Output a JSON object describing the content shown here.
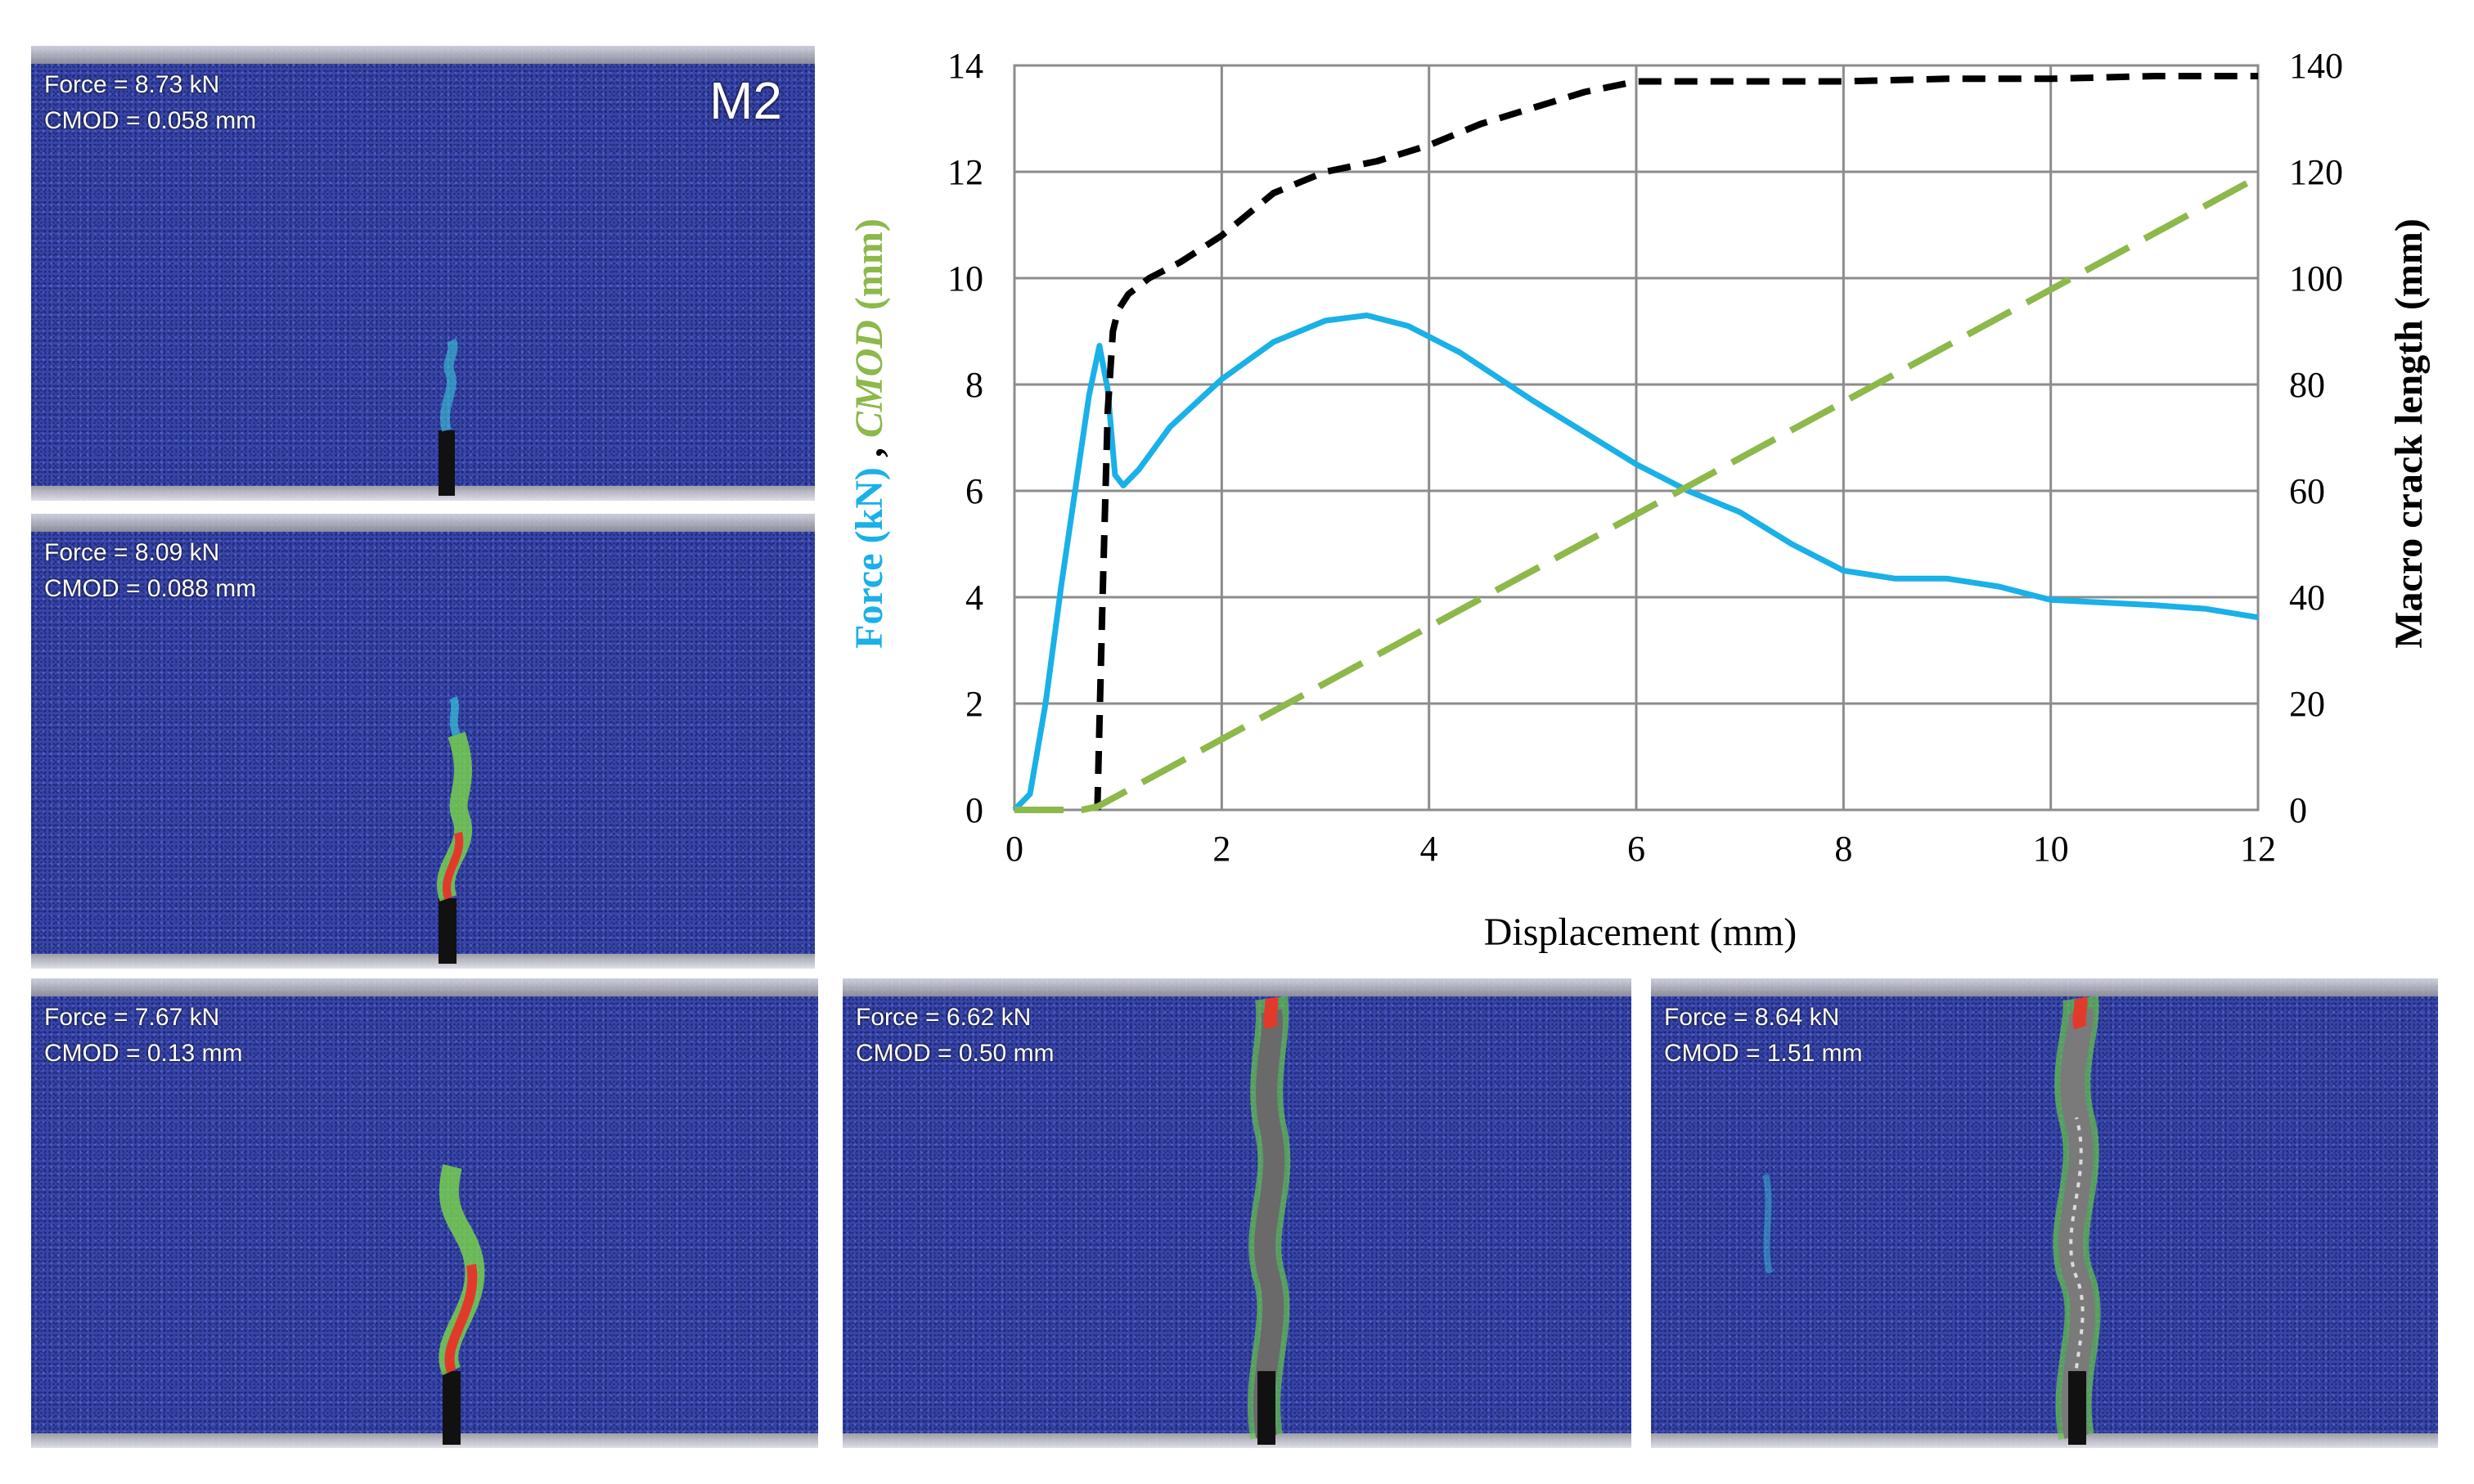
{
  "chart_data": {
    "type": "line",
    "xlabel": "Displacement (mm)",
    "xlim": [
      0,
      12
    ],
    "xticks": [
      "0",
      "2",
      "4",
      "6",
      "8",
      "10",
      "12"
    ],
    "ylim_left": [
      0,
      14
    ],
    "yticks_left": [
      "0",
      "2",
      "4",
      "6",
      "8",
      "10",
      "12",
      "14"
    ],
    "ylim_right": [
      0,
      140
    ],
    "yticks_right": [
      "0",
      "20",
      "40",
      "60",
      "80",
      "100",
      "120",
      "140"
    ],
    "ylabel_left": {
      "part1": "Force (kN)",
      "sep": " , ",
      "part2": "CMOD",
      "part3": " (mm)"
    },
    "ylabel_right": "Macro crack length  (mm)",
    "series": [
      {
        "name": "Force (kN)",
        "axis": "left",
        "color": "#1ab0e8",
        "dash": "solid",
        "x": [
          0,
          0.15,
          0.3,
          0.45,
          0.6,
          0.72,
          0.82,
          0.9,
          0.97,
          1.05,
          1.2,
          1.5,
          2.0,
          2.5,
          3.0,
          3.4,
          3.8,
          4.3,
          5.0,
          5.5,
          6.0,
          6.5,
          7.0,
          7.5,
          8.0,
          8.5,
          9.0,
          9.5,
          10.0,
          10.5,
          11.0,
          11.5,
          12.0
        ],
        "y": [
          0,
          0.3,
          2.0,
          4.2,
          6.2,
          7.8,
          8.73,
          7.9,
          6.3,
          6.1,
          6.4,
          7.2,
          8.1,
          8.8,
          9.2,
          9.3,
          9.1,
          8.6,
          7.7,
          7.1,
          6.5,
          6.0,
          5.6,
          5.0,
          4.5,
          4.35,
          4.35,
          4.2,
          3.95,
          3.9,
          3.85,
          3.78,
          3.62
        ]
      },
      {
        "name": "Macro crack length (mm)",
        "axis": "right",
        "color": "#000000",
        "dash": "short",
        "x": [
          0.8,
          0.85,
          0.9,
          0.95,
          1.0,
          1.1,
          1.3,
          1.6,
          2.0,
          2.5,
          3.0,
          3.5,
          4.0,
          4.5,
          5.0,
          5.5,
          6.0,
          7.0,
          8.0,
          9.0,
          10.0,
          11.0,
          12.0
        ],
        "y": [
          0,
          40,
          75,
          90,
          94,
          97,
          100,
          103,
          108,
          116,
          120,
          122,
          125,
          129,
          132,
          135,
          137,
          137,
          137,
          137.5,
          137.5,
          138,
          138
        ]
      },
      {
        "name": "CMOD (mm)",
        "axis": "left",
        "color": "#8db84a",
        "dash": "long",
        "x": [
          0,
          0.65,
          0.8,
          12.0
        ],
        "y": [
          0,
          0,
          0.06,
          11.9
        ]
      }
    ]
  },
  "dic_panels": [
    {
      "force": "Force  =  8.73 kN",
      "cmod": "CMOD = 0.058 mm",
      "tag": "M2"
    },
    {
      "force": "Force  =  8.09 kN",
      "cmod": "CMOD = 0.088 mm"
    },
    {
      "force": "Force  = 7.67 kN",
      "cmod": "CMOD = 0.13 mm"
    },
    {
      "force": "Force  = 6.62 kN",
      "cmod": "CMOD = 0.50 mm"
    },
    {
      "force": "Force  = 8.64 kN",
      "cmod": "CMOD = 1.51 mm"
    }
  ]
}
